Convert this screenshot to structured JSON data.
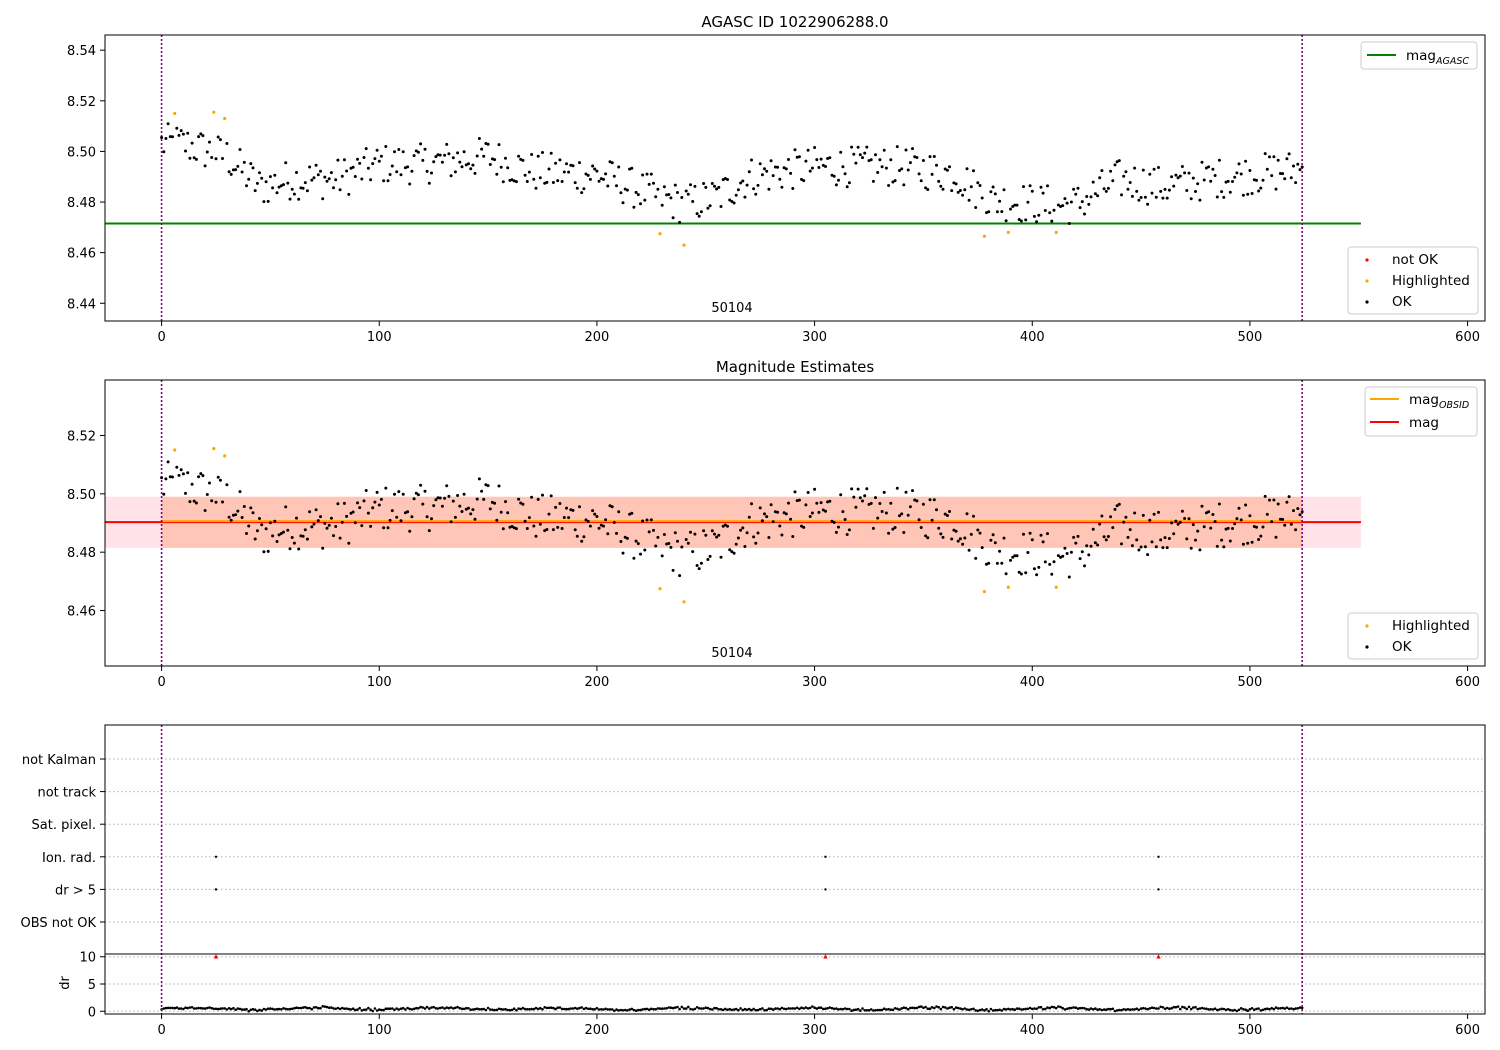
{
  "colors": {
    "ok": "#000000",
    "highlighted": "#ffa500",
    "not_ok": "#ff0000",
    "mag_agasc": "#008000",
    "mag_obsid": "#ffa500",
    "mag": "#ff0000",
    "band_outer": "#ffc0cb",
    "band_inner": "#ffa07a",
    "obs_boundary": "#800080",
    "grid": "#b0b0b0"
  },
  "chart_data": [
    {
      "type": "scatter",
      "title": "AGASC ID 1022906288.0",
      "annotation": "50104",
      "xlim": [
        -26,
        608
      ],
      "ylim": [
        8.433,
        8.546
      ],
      "xticks": [
        0,
        100,
        200,
        300,
        400,
        500,
        600
      ],
      "yticks": [
        8.44,
        8.46,
        8.48,
        8.5,
        8.52,
        8.54
      ],
      "n_points": 525,
      "mag_agasc": 8.4715,
      "mag_agasc_xrange": [
        -26,
        551
      ],
      "obs_boundaries": [
        0,
        524
      ],
      "highlighted_points": [
        [
          6,
          8.515
        ],
        [
          24,
          8.5155
        ],
        [
          29,
          8.513
        ],
        [
          229,
          8.4675
        ],
        [
          240,
          8.463
        ],
        [
          378,
          8.4665
        ],
        [
          389,
          8.468
        ],
        [
          411,
          8.468
        ]
      ],
      "legend": {
        "lines": [
          {
            "label": "mag",
            "subscript": "AGASC"
          }
        ],
        "markers": [
          "not OK",
          "Highlighted",
          "OK"
        ]
      }
    },
    {
      "type": "scatter",
      "title": "Magnitude Estimates",
      "annotation": "50104",
      "xlim": [
        -26,
        608
      ],
      "ylim": [
        8.441,
        8.539
      ],
      "xticks": [
        0,
        100,
        200,
        300,
        400,
        500,
        600
      ],
      "yticks": [
        8.46,
        8.48,
        8.5,
        8.52
      ],
      "n_points": 525,
      "mag": 8.4903,
      "mag_obsid": 8.4903,
      "mag_band": [
        8.4815,
        8.499
      ],
      "mag_obsid_band": [
        8.4815,
        8.499
      ],
      "band_xrange": [
        -26,
        551
      ],
      "obs_boundaries": [
        0,
        524
      ],
      "highlighted_points": [
        [
          6,
          8.515
        ],
        [
          24,
          8.5155
        ],
        [
          29,
          8.513
        ],
        [
          229,
          8.4675
        ],
        [
          240,
          8.463
        ],
        [
          378,
          8.4665
        ],
        [
          389,
          8.468
        ],
        [
          411,
          8.468
        ]
      ],
      "legend": {
        "lines": [
          {
            "label": "mag",
            "subscript": "OBSID"
          },
          {
            "label": "mag",
            "subscript": ""
          }
        ],
        "markers": [
          "Highlighted",
          "OK"
        ]
      }
    },
    {
      "type": "scatter",
      "title": "",
      "xlim": [
        -26,
        608
      ],
      "xticks": [
        0,
        100,
        200,
        300,
        400,
        500,
        600
      ],
      "flag_categories": [
        "not Kalman",
        "not track",
        "Sat. pixel.",
        "Ion. rad.",
        "dr > 5",
        "OBS not OK"
      ],
      "flag_points": [
        {
          "category": "Ion. rad.",
          "x": [
            25,
            305,
            458
          ]
        },
        {
          "category": "dr > 5",
          "x": [
            25,
            305,
            458
          ]
        }
      ],
      "dr_ylabel": "dr",
      "dr_ylim": [
        -0.5,
        10.5
      ],
      "dr_yticks": [
        0,
        5,
        10
      ],
      "dr_clipped": [
        {
          "x": 25,
          "y": 10
        },
        {
          "x": 305,
          "y": 10
        },
        {
          "x": 458,
          "y": 10
        }
      ],
      "dr_typical_range": [
        0,
        1
      ],
      "obs_boundaries": [
        0,
        524
      ]
    }
  ]
}
